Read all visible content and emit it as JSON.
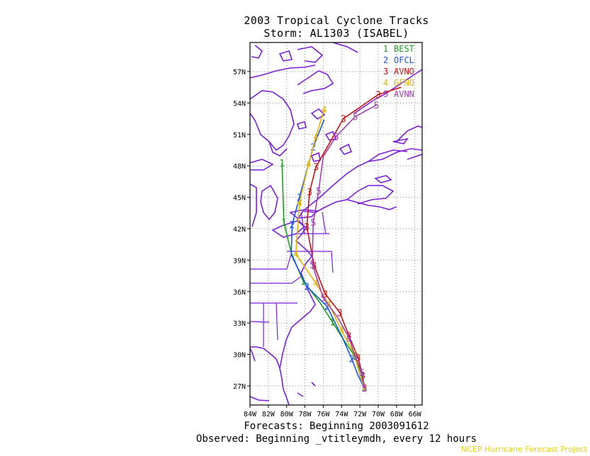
{
  "title": "2003 Tropical Cyclone Tracks",
  "subtitle": "Storm: AL1303 (ISABEL)",
  "footer_forecasts": "Forecasts: Beginning 2003091612",
  "footer_observed": "Observed: Beginning _vtitleymdh, every 12 hours",
  "credit": "NCEP Hurricane Forecast Project",
  "axes": {
    "lat_ticks": [
      "27N",
      "30N",
      "33N",
      "36N",
      "39N",
      "42N",
      "45N",
      "48N",
      "51N",
      "54N",
      "57N"
    ],
    "lon_ticks": [
      "84W",
      "82W",
      "80W",
      "78W",
      "76W",
      "74W",
      "72W",
      "70W",
      "68W",
      "66W"
    ]
  },
  "colors": {
    "coast": "#7b1fe0",
    "grid": "#888888",
    "BEST": "#1aa01a",
    "OFCL": "#1a55e6",
    "AVNO": "#c81414",
    "GFNO": "#e0b400",
    "AVNN": "#a040b4"
  },
  "legend": [
    {
      "num": "1",
      "name": "BEST"
    },
    {
      "num": "2",
      "name": "OFCL"
    },
    {
      "num": "3",
      "name": "AVNO"
    },
    {
      "num": "4",
      "name": "GFNO"
    },
    {
      "num": "5",
      "name": "AVNN"
    }
  ],
  "tracks": {
    "BEST": [
      [
        -71.5,
        26.8
      ],
      [
        -71.9,
        28.3
      ],
      [
        -72.6,
        29.9
      ],
      [
        -73.7,
        31.3
      ],
      [
        -75.0,
        33.1
      ],
      [
        -76.4,
        35.0
      ],
      [
        -78.2,
        37.0
      ],
      [
        -79.5,
        39.7
      ],
      [
        -80.3,
        42.6
      ],
      [
        -80.4,
        45.4
      ],
      [
        -80.5,
        48.3
      ]
    ],
    "OFCL": [
      [
        -71.5,
        26.8
      ],
      [
        -72.2,
        28.0
      ],
      [
        -72.9,
        29.6
      ],
      [
        -73.9,
        31.6
      ],
      [
        -75.6,
        34.6
      ],
      [
        -77.8,
        36.5
      ],
      [
        -79.5,
        39.5
      ],
      [
        -79.4,
        42.4
      ],
      [
        -78.6,
        45.0
      ],
      [
        -77.1,
        49.8
      ],
      [
        -75.9,
        52.4
      ]
    ],
    "AVNO": [
      [
        -71.5,
        26.8
      ],
      [
        -71.7,
        28.0
      ],
      [
        -72.2,
        29.7
      ],
      [
        -73.2,
        31.8
      ],
      [
        -74.2,
        34.0
      ],
      [
        -75.8,
        35.8
      ],
      [
        -77.0,
        38.5
      ],
      [
        -77.8,
        42.2
      ],
      [
        -77.5,
        45.5
      ],
      [
        -76.8,
        47.9
      ],
      [
        -73.8,
        52.5
      ],
      [
        -70.0,
        54.8
      ],
      [
        -67.5,
        55.5
      ]
    ],
    "GFNO": [
      [
        -71.5,
        26.8
      ],
      [
        -72.0,
        28.0
      ],
      [
        -72.6,
        30.0
      ],
      [
        -74.0,
        32.3
      ],
      [
        -75.4,
        34.8
      ],
      [
        -76.8,
        36.8
      ],
      [
        -79.0,
        39.6
      ],
      [
        -78.6,
        44.5
      ],
      [
        -77.6,
        48.2
      ],
      [
        -76.8,
        50.8
      ],
      [
        -75.9,
        53.4
      ]
    ],
    "AVNN": [
      [
        -71.5,
        26.8
      ],
      [
        -71.8,
        28.3
      ],
      [
        -72.5,
        29.8
      ],
      [
        -73.2,
        31.6
      ],
      [
        -74.4,
        33.5
      ],
      [
        -76.0,
        35.4
      ],
      [
        -77.2,
        38.6
      ],
      [
        -77.1,
        42.6
      ],
      [
        -76.5,
        45.6
      ],
      [
        -76.0,
        48.9
      ],
      [
        -74.6,
        50.8
      ],
      [
        -72.5,
        52.7
      ],
      [
        -70.2,
        53.8
      ]
    ]
  },
  "track_markers": {
    "BEST": [
      [
        -71.5,
        26.8
      ],
      [
        -72.6,
        29.9
      ],
      [
        -75.0,
        33.1
      ],
      [
        -78.2,
        37.0
      ],
      [
        -80.3,
        42.6
      ],
      [
        -80.5,
        48.3
      ]
    ],
    "OFCL": [
      [
        -71.5,
        26.8
      ],
      [
        -72.9,
        29.6
      ],
      [
        -75.6,
        34.6
      ],
      [
        -77.8,
        36.5
      ],
      [
        -79.4,
        42.4
      ],
      [
        -78.6,
        45.0
      ],
      [
        -77.1,
        49.8
      ]
    ],
    "AVNO": [
      [
        -71.5,
        26.8
      ],
      [
        -71.7,
        28.0
      ],
      [
        -72.2,
        29.7
      ],
      [
        -73.2,
        31.8
      ],
      [
        -74.2,
        34.0
      ],
      [
        -75.8,
        35.8
      ],
      [
        -77.0,
        38.5
      ],
      [
        -77.8,
        42.2
      ],
      [
        -77.5,
        45.5
      ],
      [
        -76.8,
        47.9
      ],
      [
        -73.8,
        52.5
      ],
      [
        -70.0,
        54.8
      ]
    ],
    "GFNO": [
      [
        -71.5,
        26.8
      ],
      [
        -72.6,
        30.0
      ],
      [
        -74.0,
        32.3
      ],
      [
        -75.4,
        34.8
      ],
      [
        -76.8,
        36.8
      ],
      [
        -79.0,
        39.6
      ],
      [
        -78.6,
        44.5
      ],
      [
        -77.6,
        48.2
      ],
      [
        -76.8,
        50.8
      ],
      [
        -75.9,
        53.4
      ]
    ],
    "AVNN": [
      [
        -71.5,
        26.8
      ],
      [
        -71.8,
        28.3
      ],
      [
        -72.5,
        29.8
      ],
      [
        -73.2,
        31.6
      ],
      [
        -76.0,
        35.4
      ],
      [
        -77.2,
        38.6
      ],
      [
        -77.1,
        42.6
      ],
      [
        -76.5,
        45.6
      ],
      [
        -74.6,
        50.8
      ],
      [
        -72.5,
        52.7
      ],
      [
        -70.2,
        53.8
      ]
    ]
  }
}
